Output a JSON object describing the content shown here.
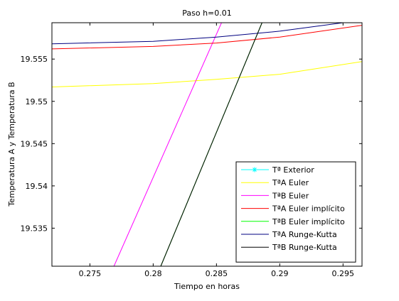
{
  "chart_data": {
    "type": "line",
    "title": "Paso h=0.01",
    "xlabel": "Tiempo en horas",
    "ylabel": "Temperatura A y Temperatura B",
    "xlim": [
      0.272,
      0.2965
    ],
    "ylim": [
      19.5305,
      19.5593
    ],
    "xticks": [
      0.275,
      0.28,
      0.285,
      0.29,
      0.295
    ],
    "xtick_labels": [
      "0.275",
      "0.28",
      "0.285",
      "0.29",
      "0.295"
    ],
    "yticks": [
      19.535,
      19.54,
      19.545,
      19.55,
      19.555
    ],
    "ytick_labels": [
      "19.535",
      "19.54",
      "19.545",
      "19.55",
      "19.555"
    ],
    "grid": false,
    "legend_position": "bottom-right",
    "series": [
      {
        "name": "Tª Exterior",
        "color": "#00ffff",
        "marker": "asterisk",
        "x": [],
        "y": []
      },
      {
        "name": "TªA Euler",
        "color": "#ffff00",
        "x": [
          0.272,
          0.28,
          0.285,
          0.29,
          0.2965
        ],
        "y": [
          19.5517,
          19.5521,
          19.5526,
          19.5532,
          19.5547
        ]
      },
      {
        "name": "TªB Euler",
        "color": "#ff00ff",
        "x": [
          0.2769,
          0.2854
        ],
        "y": [
          19.5305,
          19.5593
        ]
      },
      {
        "name": "TªA Euler implícito",
        "color": "#ff0000",
        "x": [
          0.272,
          0.28,
          0.285,
          0.29,
          0.2965
        ],
        "y": [
          19.5562,
          19.5565,
          19.5569,
          19.5576,
          19.559
        ]
      },
      {
        "name": "TªB Euler implícito",
        "color": "#00ff00",
        "x": [
          0.2806,
          0.2886
        ],
        "y": [
          19.5305,
          19.5593
        ]
      },
      {
        "name": "TªA Runge-Kutta",
        "color": "#000080",
        "x": [
          0.272,
          0.28,
          0.285,
          0.29,
          0.2965
        ],
        "y": [
          19.5568,
          19.5571,
          19.5576,
          19.5583,
          19.5596
        ]
      },
      {
        "name": "TªB Runge-Kutta",
        "color": "#000000",
        "x": [
          0.2806,
          0.2886
        ],
        "y": [
          19.5305,
          19.5593
        ]
      }
    ]
  }
}
